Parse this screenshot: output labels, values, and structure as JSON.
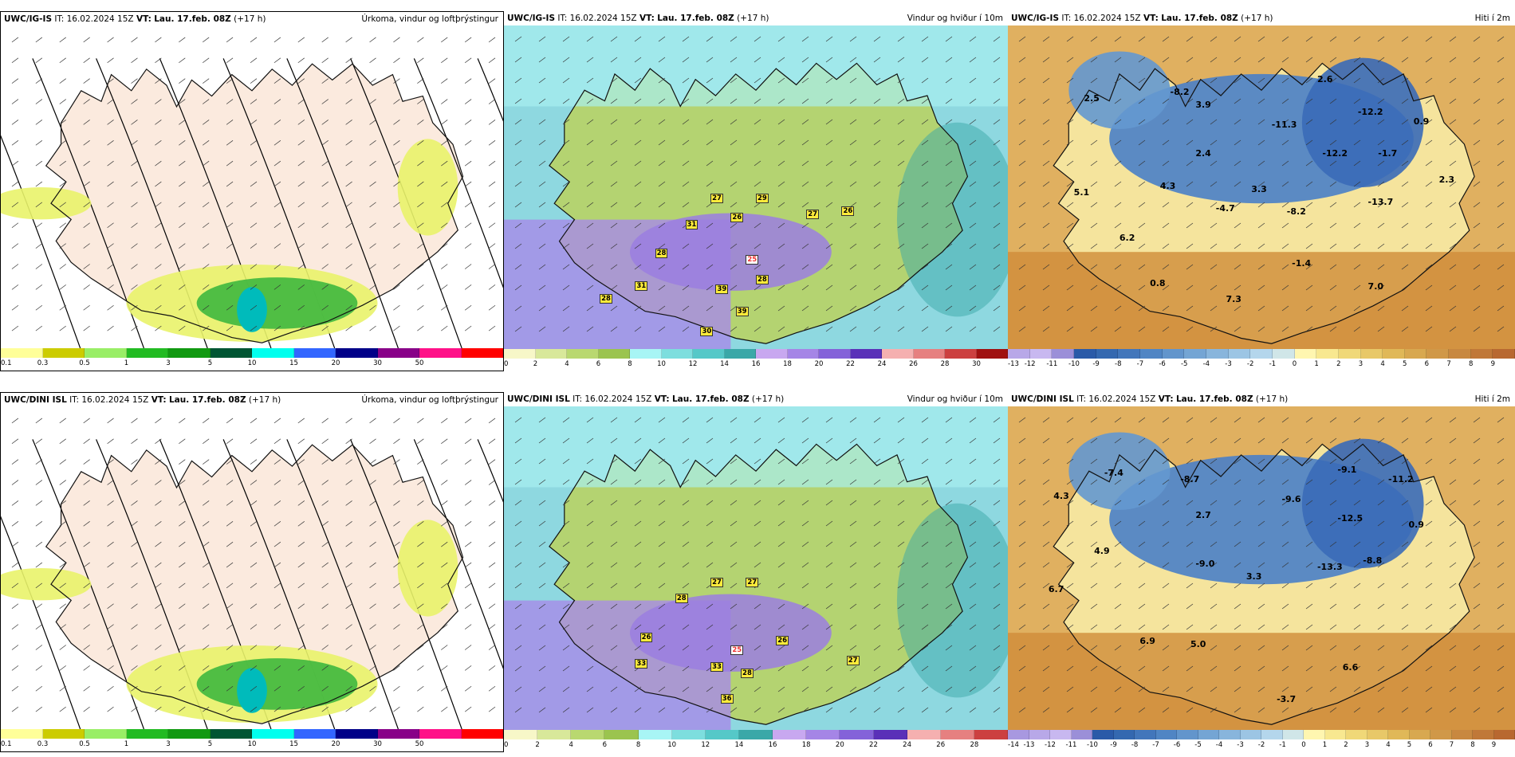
{
  "panels": [
    {
      "id": "p1",
      "model": "UWC/IG-IS",
      "it": "IT: 16.02.2024 15Z",
      "vt_label": "VT:",
      "vt_value": "Lau. 17.feb. 08Z",
      "lead": "(+17 h)",
      "title": "Úrkoma, vindur og loftþrýstingur",
      "colorbar": {
        "colors": [
          "#ffff99",
          "#cccc00",
          "#99ee66",
          "#22bb22",
          "#119911",
          "#005533",
          "#00ffee",
          "#3366ff",
          "#000088",
          "#880088",
          "#ff1188",
          "#ff0000"
        ],
        "ticks": [
          "0.1",
          "0.3",
          "0.5",
          "1",
          "3",
          "5",
          "10",
          "15",
          "20",
          "30",
          "50"
        ]
      }
    },
    {
      "id": "p2",
      "model": "UWC/IG-IS",
      "it": "IT: 16.02.2024 15Z",
      "vt_label": "VT:",
      "vt_value": "Lau. 17.feb. 08Z",
      "lead": "(+17 h)",
      "title": "Vindur og hviður í 10m",
      "labels": [
        "27",
        "29",
        "31",
        "26",
        "27",
        "26",
        "28",
        "31",
        "28",
        "39",
        "25",
        "28",
        "30",
        "39"
      ],
      "colorbar": {
        "colors": [
          "#f7f7c8",
          "#d8e89a",
          "#b9d870",
          "#9bc44f",
          "#a8f5f5",
          "#7ddede",
          "#55c8c8",
          "#3aa8a8",
          "#c8a8f0",
          "#a585e6",
          "#8462d9",
          "#5a30b8",
          "#f5b0b0",
          "#e68080",
          "#cc4040",
          "#a01010"
        ],
        "ticks": [
          "0",
          "2",
          "4",
          "6",
          "8",
          "10",
          "12",
          "14",
          "16",
          "18",
          "20",
          "22",
          "24",
          "26",
          "28",
          "30"
        ]
      }
    },
    {
      "id": "p3",
      "model": "UWC/IG-IS",
      "it": "IT: 16.02.2024 15Z",
      "vt_label": "VT:",
      "vt_value": "Lau. 17.feb. 08Z",
      "lead": "(+17 h)",
      "title": "Hiti í 2m",
      "labels": [
        "2.5",
        "-8.2",
        "3.9",
        "2.6",
        "-11.3",
        "-12.2",
        "0.9",
        "2.4",
        "-12.2",
        "-1.7",
        "5.1",
        "4.3",
        "3.3",
        "-13.7",
        "2.3",
        "-4.7",
        "-8.2",
        "6.2",
        "-1.4",
        "0.8",
        "7.0",
        "7.3"
      ],
      "colorbar": {
        "colors": [
          "#b8a8e8",
          "#c8b8f0",
          "#9b8fd8",
          "#2a5aa8",
          "#3468b0",
          "#4276bb",
          "#5085c4",
          "#6295cc",
          "#74a5d4",
          "#88b5dc",
          "#9cc5e4",
          "#b4d6ec",
          "#d0e6e8",
          "#fff6b0",
          "#f8e890",
          "#f0d878",
          "#e8c868",
          "#e0b858",
          "#d8a850",
          "#d09848",
          "#c88840",
          "#c07838",
          "#b86830"
        ],
        "ticks": [
          "-13",
          "-12",
          "-11",
          "-10",
          "-9",
          "-8",
          "-7",
          "-6",
          "-5",
          "-4",
          "-3",
          "-2",
          "-1",
          "0",
          "1",
          "2",
          "3",
          "4",
          "5",
          "6",
          "7",
          "8",
          "9"
        ]
      }
    },
    {
      "id": "p4",
      "model": "UWC/DINI ISL",
      "it": "IT: 16.02.2024 15Z",
      "vt_label": "VT:",
      "vt_value": "Lau. 17.feb. 08Z",
      "lead": "(+17 h)",
      "title": "Úrkoma, vindur og loftþrýstingur",
      "colorbar": {
        "colors": [
          "#ffff99",
          "#cccc00",
          "#99ee66",
          "#22bb22",
          "#119911",
          "#005533",
          "#00ffee",
          "#3366ff",
          "#000088",
          "#880088",
          "#ff1188",
          "#ff0000"
        ],
        "ticks": [
          "0.1",
          "0.3",
          "0.5",
          "1",
          "3",
          "5",
          "10",
          "15",
          "20",
          "30",
          "50"
        ]
      }
    },
    {
      "id": "p5",
      "model": "UWC/DINI ISL",
      "it": "IT: 16.02.2024 15Z",
      "vt_label": "VT:",
      "vt_value": "Lau. 17.feb. 08Z",
      "lead": "(+17 h)",
      "title": "Vindur og hviður í 10m",
      "labels": [
        "28",
        "27",
        "27",
        "26",
        "26",
        "33",
        "25",
        "33",
        "28",
        "27",
        "36"
      ],
      "colorbar": {
        "colors": [
          "#f7f7c8",
          "#d8e89a",
          "#b9d870",
          "#9bc44f",
          "#a8f5f5",
          "#7ddede",
          "#55c8c8",
          "#3aa8a8",
          "#c8a8f0",
          "#a585e6",
          "#8462d9",
          "#5a30b8",
          "#f5b0b0",
          "#e68080",
          "#cc4040"
        ],
        "ticks": [
          "0",
          "2",
          "4",
          "6",
          "8",
          "10",
          "12",
          "14",
          "16",
          "18",
          "20",
          "22",
          "24",
          "26",
          "28"
        ]
      }
    },
    {
      "id": "p6",
      "model": "UWC/DINI ISL",
      "it": "IT: 16.02.2024 15Z",
      "vt_label": "VT:",
      "vt_value": "Lau. 17.feb. 08Z",
      "lead": "(+17 h)",
      "title": "Hiti í 2m",
      "labels": [
        "-7.4",
        "-8.7",
        "-9.1",
        "-11.2",
        "4.3",
        "2.7",
        "-9.6",
        "0.9",
        "-12.5",
        "4.9",
        "-9.0",
        "3.3",
        "-13.3",
        "-8.8",
        "6.7",
        "6.9",
        "5.0",
        "6.6",
        "-3.7"
      ],
      "colorbar": {
        "colors": [
          "#a898e0",
          "#b8a8e8",
          "#c8b8f0",
          "#9b8fd8",
          "#2a5aa8",
          "#3468b0",
          "#4276bb",
          "#5085c4",
          "#6295cc",
          "#74a5d4",
          "#88b5dc",
          "#9cc5e4",
          "#b4d6ec",
          "#d0e6e8",
          "#fff6b0",
          "#f8e890",
          "#f0d878",
          "#e8c868",
          "#e0b858",
          "#d8a850",
          "#d09848",
          "#c88840",
          "#c07838",
          "#b86830"
        ],
        "ticks": [
          "-14",
          "-13",
          "-12",
          "-11",
          "-10",
          "-9",
          "-8",
          "-7",
          "-6",
          "-5",
          "-4",
          "-3",
          "-2",
          "-1",
          "0",
          "1",
          "2",
          "3",
          "4",
          "5",
          "6",
          "7",
          "8",
          "9"
        ]
      }
    }
  ]
}
